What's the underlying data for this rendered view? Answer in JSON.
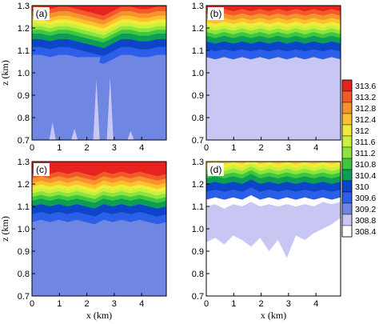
{
  "chart_data": {
    "type": "heatmap",
    "subtype": "filled-contour",
    "panel_order": [
      "(a)",
      "(b)",
      "(c)",
      "(d)"
    ],
    "xlabel": "x (km)",
    "ylabel": "z (km)",
    "xlim": [
      0,
      4.9
    ],
    "ylim": [
      0.7,
      1.3
    ],
    "x_ticks": [
      0,
      1,
      2,
      3,
      4
    ],
    "y_ticks": [
      0.7,
      0.8,
      0.9,
      1.0,
      1.1,
      1.2,
      1.3
    ],
    "x_tick_labels": [
      "0",
      "1",
      "2",
      "3",
      "4"
    ],
    "y_tick_labels": [
      "0.7",
      "0.8",
      "0.9",
      "1.0",
      "1.1",
      "1.2",
      "1.3"
    ],
    "colorbar": {
      "levels": [
        313.6,
        313.2,
        312.8,
        312.4,
        312,
        311.6,
        311.2,
        310.8,
        310.4,
        310,
        309.6,
        309.2,
        308.8,
        308.4
      ],
      "labels": [
        "313.6",
        "313.2",
        "312.8",
        "312.4",
        "312",
        "311.6",
        "311.2",
        "310.8",
        "310.4",
        "310",
        "309.6",
        "309.2",
        "308.8",
        "308.4"
      ],
      "colors": [
        "#e8231f",
        "#f25a2a",
        "#f7932f",
        "#fbc22e",
        "#f0ec3a",
        "#c8f03c",
        "#8ee33f",
        "#3fc83b",
        "#0e9d57",
        "#0d45c8",
        "#2c5fe8",
        "#6f86e2",
        "#c8c7f3",
        "#ffffff"
      ]
    },
    "panels": [
      {
        "label": "(a)",
        "description_values": {
          "base_theta": 309.2,
          "inversion_base_z_km": 1.07,
          "inversion_top_z_km": 1.28
        },
        "inversion_interface_z_km": [
          1.08,
          1.08,
          1.07,
          1.08,
          1.08,
          1.07,
          1.06,
          1.05,
          1.04,
          1.06,
          1.08,
          1.08,
          1.07,
          1.07,
          1.08,
          1.08
        ]
      },
      {
        "label": "(b)",
        "description_values": {
          "base_theta": 308.8,
          "inversion_base_z_km": 1.07,
          "inversion_top_z_km": 1.28
        },
        "inversion_interface_z_km": [
          1.07,
          1.06,
          1.07,
          1.06,
          1.07,
          1.06,
          1.07,
          1.06,
          1.07,
          1.06,
          1.07,
          1.06,
          1.07,
          1.06,
          1.07,
          1.06
        ]
      },
      {
        "label": "(c)",
        "description_values": {
          "base_theta": 309.2,
          "inversion_base_z_km": 1.04,
          "inversion_top_z_km": 1.28
        },
        "inversion_interface_z_km": [
          1.03,
          1.04,
          1.03,
          1.04,
          1.03,
          1.04,
          1.03,
          1.02,
          1.04,
          1.03,
          1.04,
          1.03,
          1.04,
          1.03,
          1.02,
          1.03
        ]
      },
      {
        "label": "(d)",
        "description_values": {
          "base_theta": 308.4,
          "inversion_base_z_km": 1.14,
          "inversion_top_z_km": 1.28
        },
        "inversion_interface_z_km": [
          1.13,
          1.14,
          1.13,
          1.14,
          1.13,
          1.15,
          1.13,
          1.14,
          1.13,
          1.14,
          1.13,
          1.14,
          1.13,
          1.14,
          1.13,
          1.14
        ]
      }
    ]
  }
}
